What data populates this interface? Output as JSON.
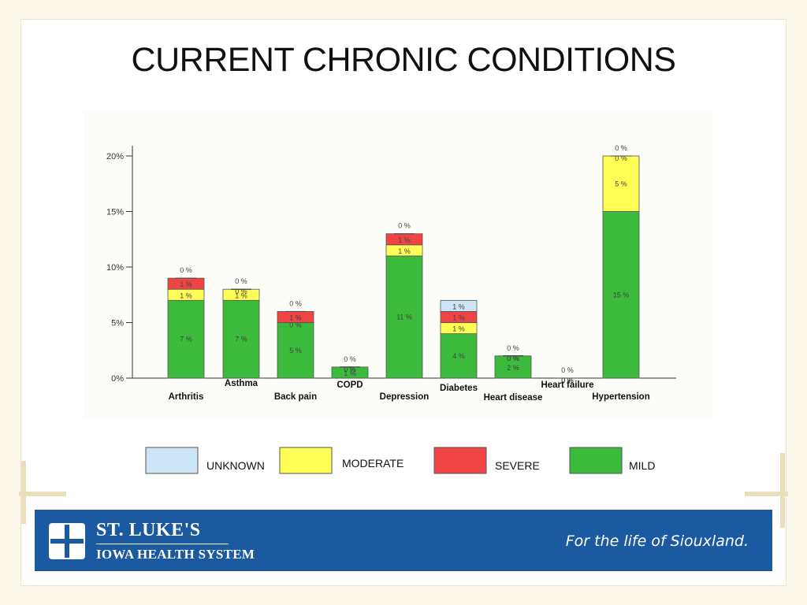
{
  "slide": {
    "title": "CURRENT CHRONIC CONDITIONS"
  },
  "footer": {
    "org_line1": "ST. LUKE'S",
    "org_line2": "IOWA HEALTH SYSTEM",
    "tagline": "For the life of Siouxland."
  },
  "colors": {
    "MILD": "#3cba3c",
    "MODERATE": "#ffff55",
    "SEVERE": "#ee4444",
    "UNKNOWN": "#cce6f7",
    "footer_band": "#1b5aa0"
  },
  "chart_data": {
    "type": "bar",
    "stacked": true,
    "categories": [
      "Arthritis",
      "Asthma",
      "Back pain",
      "COPD",
      "Depression",
      "Diabetes",
      "Heart disease",
      "Heart failure",
      "Hypertension"
    ],
    "series": [
      {
        "name": "MILD",
        "values": [
          7,
          7,
          5,
          1,
          11,
          4,
          2,
          0,
          15
        ],
        "labels": [
          "7 %",
          "7 %",
          "5 %",
          "1 %",
          "11 %",
          "4 %",
          "2 %",
          "0 %",
          "15 %"
        ]
      },
      {
        "name": "MODERATE",
        "values": [
          1,
          1,
          0,
          0,
          1,
          1,
          0,
          0,
          5
        ],
        "labels": [
          "1 %",
          "1 %",
          "0 %",
          "0 %",
          "1 %",
          "1 %",
          "0 %",
          "0 %",
          "5 %"
        ]
      },
      {
        "name": "SEVERE",
        "values": [
          1,
          0,
          1,
          0,
          1,
          1,
          0,
          0,
          0
        ],
        "labels": [
          "1 %",
          "0 %",
          "1 %",
          "0 %",
          "1 %",
          "1 %",
          "0 %",
          "0 %",
          "0 %"
        ]
      },
      {
        "name": "UNKNOWN",
        "values": [
          0,
          0,
          0,
          0,
          0,
          1,
          0,
          0,
          0
        ],
        "labels": [
          "0 %",
          "0 %",
          "0 %",
          "0 %",
          "0 %",
          "1 %",
          "0 %",
          "0 %",
          "0 %"
        ]
      }
    ],
    "yticks": [
      "0%",
      "5%",
      "10%",
      "15%",
      "20%"
    ],
    "ylim": [
      0,
      20
    ],
    "xlabel": "",
    "ylabel": "",
    "legend": [
      "UNKNOWN",
      "MODERATE",
      "SEVERE",
      "MILD"
    ],
    "legend_position": "bottom",
    "grid": false
  }
}
